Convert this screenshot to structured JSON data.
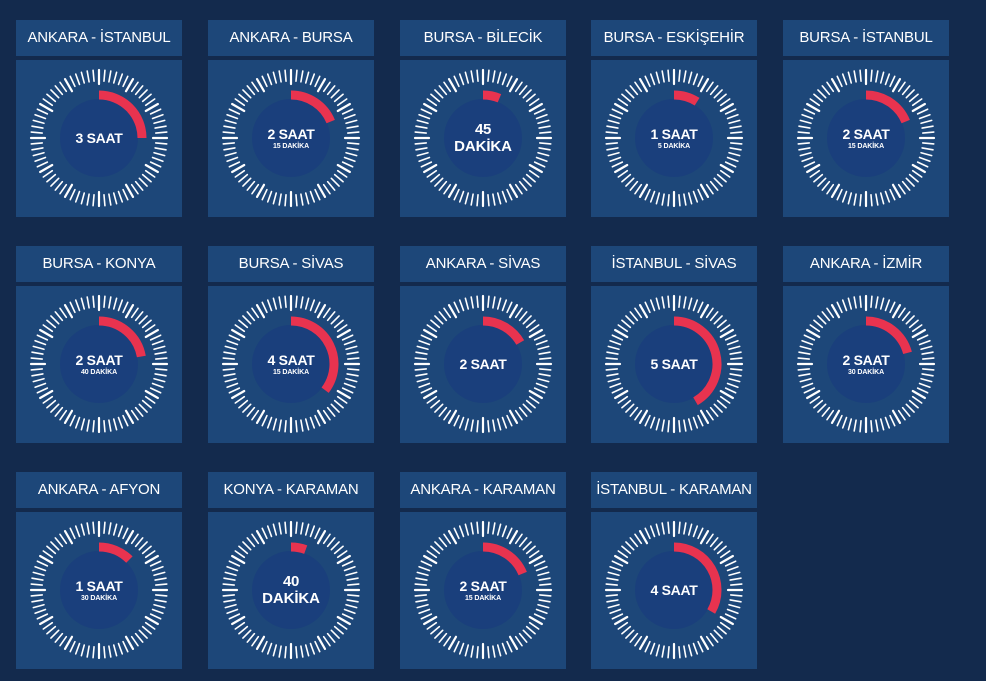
{
  "colors": {
    "background": "#132a4d",
    "card": "#1d4779",
    "center": "#1a3f7c",
    "arc": "#e8334f",
    "ticks": "#ffffff"
  },
  "cards": [
    {
      "title": "ANKARA - İSTANBUL",
      "main": "3 SAAT",
      "sub": "",
      "minutes": 180
    },
    {
      "title": "ANKARA - BURSA",
      "main": "2 SAAT",
      "sub": "15 DAKİKA",
      "minutes": 135
    },
    {
      "title": "BURSA - BİLECİK",
      "main": "45",
      "sub": "DAKİKA",
      "minutes": 45
    },
    {
      "title": "BURSA - ESKİŞEHİR",
      "main": "1 SAAT",
      "sub": "5 DAKİKA",
      "minutes": 65
    },
    {
      "title": "BURSA - İSTANBUL",
      "main": "2 SAAT",
      "sub": "15 DAKİKA",
      "minutes": 135
    },
    {
      "title": "BURSA  -  KONYA",
      "main": "2 SAAT",
      "sub": "40 DAKİKA",
      "minutes": 160
    },
    {
      "title": "BURSA - SİVAS",
      "main": "4 SAAT",
      "sub": "15 DAKİKA",
      "minutes": 255
    },
    {
      "title": "ANKARA - SİVAS",
      "main": "2 SAAT",
      "sub": "",
      "minutes": 120
    },
    {
      "title": "İSTANBUL - SİVAS",
      "main": "5 SAAT",
      "sub": "",
      "minutes": 300
    },
    {
      "title": "ANKARA - İZMİR",
      "main": "2 SAAT",
      "sub": "30 DAKİKA",
      "minutes": 150
    },
    {
      "title": "ANKARA - AFYON",
      "main": "1 SAAT",
      "sub": "30 DAKİKA",
      "minutes": 90
    },
    {
      "title": "KONYA - KARAMAN",
      "main": "40",
      "sub": "DAKİKA",
      "minutes": 40
    },
    {
      "title": "ANKARA - KARAMAN",
      "main": "2 SAAT",
      "sub": "15 DAKİKA",
      "minutes": 135
    },
    {
      "title": "İSTANBUL - KARAMAN",
      "main": "4 SAAT",
      "sub": "",
      "minutes": 240
    }
  ]
}
